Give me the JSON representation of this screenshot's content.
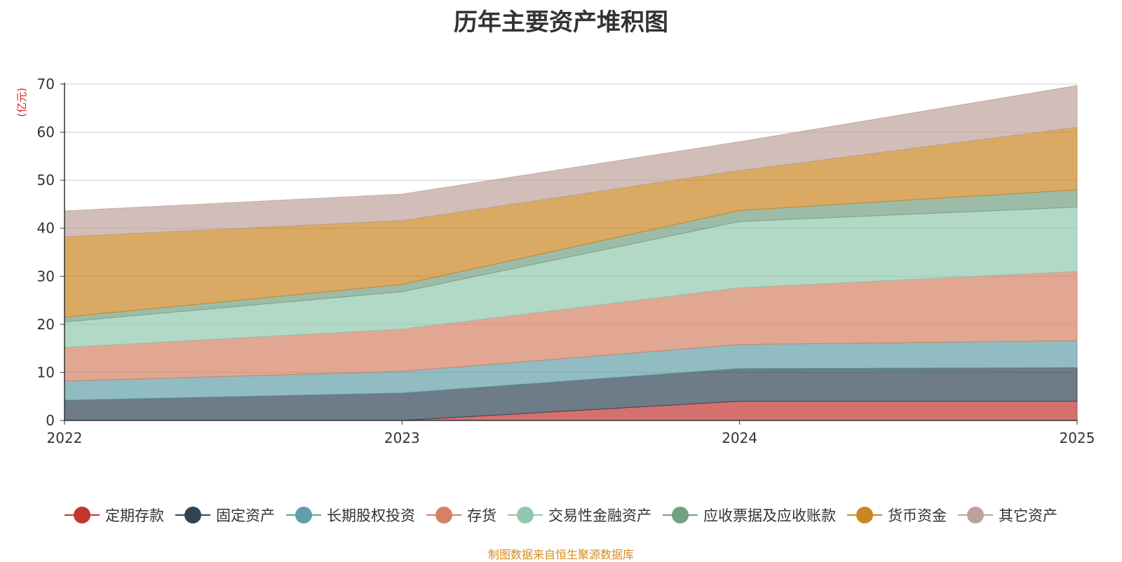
{
  "chart_data": {
    "type": "area",
    "stacked": true,
    "title": "历年主要资产堆积图",
    "ylabel": "(亿元)",
    "xlabel": "",
    "categories": [
      "2022",
      "2023",
      "2024",
      "2025"
    ],
    "ylim": [
      0,
      70
    ],
    "yticks": [
      0,
      10,
      20,
      30,
      40,
      50,
      60,
      70
    ],
    "grid": true,
    "legend_position": "bottom",
    "series": [
      {
        "name": "定期存款",
        "color": "#c23531",
        "values": [
          0.0,
          0.0,
          4.0,
          4.0
        ]
      },
      {
        "name": "固定资产",
        "color": "#2f4554",
        "values": [
          4.2,
          5.7,
          6.8,
          7.0
        ]
      },
      {
        "name": "长期股权投资",
        "color": "#61a0a8",
        "values": [
          4.0,
          4.5,
          5.0,
          5.6
        ]
      },
      {
        "name": "存货",
        "color": "#d48265",
        "values": [
          7.0,
          8.8,
          11.8,
          14.4
        ]
      },
      {
        "name": "交易性金融资产",
        "color": "#91c7ae",
        "values": [
          5.3,
          7.8,
          13.8,
          13.4
        ]
      },
      {
        "name": "应收票据及应收账款",
        "color": "#749f83",
        "values": [
          1.0,
          1.5,
          2.3,
          3.6
        ]
      },
      {
        "name": "货币资金",
        "color": "#ca8622",
        "values": [
          16.7,
          13.3,
          8.3,
          13.0
        ]
      },
      {
        "name": "其它资产",
        "color": "#bda29a",
        "values": [
          5.4,
          5.5,
          6.0,
          8.7
        ]
      }
    ],
    "source_note": "制图数据来自恒生聚源数据库",
    "source_note_color": "#d48c1b",
    "ylabel_color": "#e02020"
  }
}
